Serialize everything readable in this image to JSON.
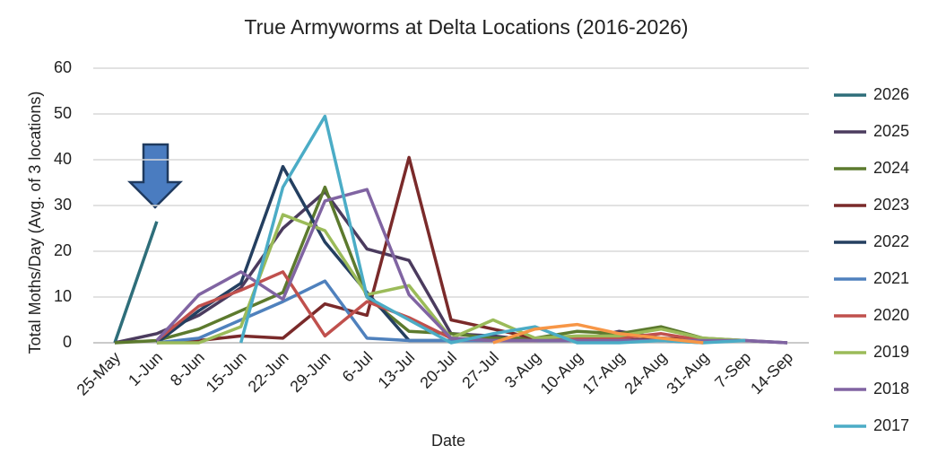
{
  "chart_data": {
    "type": "line",
    "title": "True Armyworms at Delta Locations (2016-2026)",
    "x_label": "Date",
    "y_label": "Total Moths/Day (Avg. of 3 locations)",
    "categories": [
      "25-May",
      "1-Jun",
      "8-Jun",
      "15-Jun",
      "22-Jun",
      "29-Jun",
      "6-Jul",
      "13-Jul",
      "20-Jul",
      "27-Jul",
      "3-Aug",
      "10-Aug",
      "17-Aug",
      "24-Aug",
      "31-Aug",
      "7-Sep",
      "14-Sep"
    ],
    "ylim": [
      0,
      60
    ],
    "yticks": [
      0,
      10,
      20,
      30,
      40,
      50,
      60
    ],
    "grid": true,
    "legend": "right",
    "series": [
      {
        "name": "2026",
        "color": "#2e6e7a",
        "values": [
          0,
          26.5,
          null,
          null,
          null,
          null,
          null,
          null,
          null,
          null,
          null,
          null,
          null,
          null,
          null,
          null,
          null
        ]
      },
      {
        "name": "2025",
        "color": "#4b3b5e",
        "values": [
          0,
          2,
          6,
          12,
          25,
          33,
          20.5,
          18,
          2,
          1.5,
          0.5,
          0.5,
          2.5,
          1,
          0.5,
          0.5,
          0
        ]
      },
      {
        "name": "2024",
        "color": "#5c7a2e",
        "values": [
          0,
          0.5,
          3,
          7,
          11,
          34,
          10,
          2.5,
          2,
          1,
          1,
          2.5,
          2,
          3.5,
          1,
          0.5,
          null
        ]
      },
      {
        "name": "2023",
        "color": "#7a2a2a",
        "values": [
          null,
          0,
          0.5,
          1.5,
          1,
          8.5,
          6,
          40.5,
          5,
          3,
          1,
          0.5,
          0.5,
          1,
          0.5,
          0.5,
          null
        ]
      },
      {
        "name": "2022",
        "color": "#243f60",
        "values": [
          null,
          0,
          7,
          13,
          38.5,
          22,
          11,
          0.5,
          0.5,
          0.5,
          0.5,
          0.5,
          0.5,
          0.5,
          0.5,
          null,
          null
        ]
      },
      {
        "name": "2021",
        "color": "#4f81bd",
        "values": [
          null,
          0,
          1,
          5,
          9,
          13.5,
          1,
          0.5,
          0.5,
          0.5,
          0.5,
          0.5,
          0.5,
          0.5,
          0,
          null,
          null
        ]
      },
      {
        "name": "2020",
        "color": "#c0504d",
        "values": [
          null,
          0.5,
          8,
          11.5,
          15.5,
          1.5,
          9,
          5.5,
          1,
          0.5,
          0.5,
          1,
          1,
          2,
          0.5,
          null,
          null
        ]
      },
      {
        "name": "2019",
        "color": "#9bbb59",
        "values": [
          null,
          0,
          0,
          3.5,
          28,
          24.5,
          10.5,
          12.5,
          1,
          5,
          1,
          1.5,
          1.5,
          3,
          1,
          0.5,
          null
        ]
      },
      {
        "name": "2018",
        "color": "#8064a2",
        "values": [
          null,
          0.5,
          10.5,
          15.5,
          9.5,
          31,
          33.5,
          10.5,
          1,
          0.5,
          0.5,
          0.5,
          0.5,
          0.5,
          0.5,
          0.5,
          0
        ]
      },
      {
        "name": "2017",
        "color": "#4bacc6",
        "values": [
          null,
          null,
          null,
          0,
          34,
          49.5,
          10,
          5,
          0,
          2,
          3.5,
          0,
          0,
          0.5,
          0,
          0.5,
          null
        ]
      },
      {
        "color": "#f79646",
        "values": [
          null,
          null,
          null,
          null,
          null,
          null,
          null,
          null,
          null,
          0,
          3,
          4,
          2,
          1,
          0,
          null,
          null
        ]
      }
    ]
  }
}
